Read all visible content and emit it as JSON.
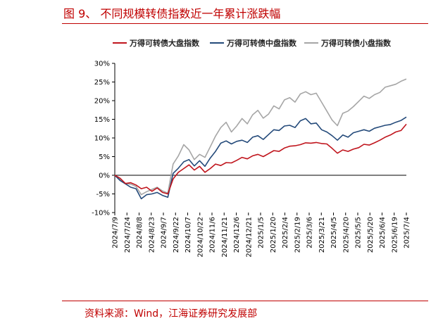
{
  "title": "图 9、 不同规模转债指数近一年累计涨跌幅",
  "source": "资料来源：Wind，江海证券研究发展部",
  "colors": {
    "large": "#c0151d",
    "mid": "#244a7a",
    "small": "#a6a6a6",
    "accent": "#c00000"
  },
  "chart_data": {
    "type": "line",
    "title": "",
    "xlabel": "",
    "ylabel": "",
    "ylim": [
      -10,
      30
    ],
    "yticks": [
      "30%",
      "25%",
      "20%",
      "15%",
      "10%",
      "5%",
      "0%",
      "-5%",
      "-10%"
    ],
    "xticks": [
      "2024/7/9",
      "2024/7/24",
      "2024/8/8",
      "2024/8/23",
      "2024/9/7",
      "2024/9/22",
      "2024/10/7",
      "2024/10/22",
      "2024/11/6",
      "2024/11/21",
      "2024/12/6",
      "2024/12/21",
      "2025/1/5",
      "2025/1/20",
      "2025/2/4",
      "2025/2/19",
      "2025/3/6",
      "2025/3/21",
      "2025/4/5",
      "2025/4/20",
      "2025/5/5",
      "2025/5/20",
      "2025/6/4",
      "2025/6/19",
      "2025/7/4"
    ],
    "legend_position": "top",
    "grid": false,
    "x": [
      "2024/7/9",
      "2024/7/16",
      "2024/7/24",
      "2024/8/1",
      "2024/8/8",
      "2024/8/16",
      "2024/8/23",
      "2024/9/1",
      "2024/9/7",
      "2024/9/15",
      "2024/9/22",
      "2024/9/24",
      "2024/9/27",
      "2024/9/30",
      "2024/10/8",
      "2024/10/11",
      "2024/10/15",
      "2024/10/22",
      "2024/10/29",
      "2024/11/6",
      "2024/11/10",
      "2024/11/14",
      "2024/11/21",
      "2024/11/28",
      "2024/12/6",
      "2024/12/12",
      "2024/12/21",
      "2024/12/28",
      "2025/1/5",
      "2025/1/12",
      "2025/1/20",
      "2025/1/27",
      "2025/2/4",
      "2025/2/11",
      "2025/2/19",
      "2025/2/26",
      "2025/3/6",
      "2025/3/14",
      "2025/3/21",
      "2025/3/28",
      "2025/4/3",
      "2025/4/7",
      "2025/4/10",
      "2025/4/20",
      "2025/4/27",
      "2025/5/5",
      "2025/5/12",
      "2025/5/20",
      "2025/5/27",
      "2025/6/4",
      "2025/6/11",
      "2025/6/19",
      "2025/6/26",
      "2025/7/1",
      "2025/7/4",
      "2025/7/7"
    ],
    "series": [
      {
        "name": "万得可转债大盘指数",
        "color": "#c0151d",
        "values": [
          0,
          -0.8,
          -2.2,
          -2.0,
          -2.6,
          -3.6,
          -3.2,
          -4.3,
          -3.4,
          -4.6,
          -5.0,
          -1.0,
          0.8,
          1.8,
          2.8,
          1.4,
          2.4,
          0.8,
          1.8,
          3.0,
          2.6,
          3.4,
          3.3,
          4.0,
          4.8,
          4.4,
          5.2,
          5.6,
          5.0,
          5.8,
          6.6,
          6.4,
          7.3,
          7.8,
          7.9,
          8.2,
          8.7,
          8.6,
          8.8,
          8.5,
          8.4,
          7.2,
          5.9,
          6.8,
          6.4,
          7.0,
          7.4,
          8.3,
          8.1,
          8.7,
          9.4,
          10.2,
          10.8,
          11.6,
          12.0,
          13.7
        ]
      },
      {
        "name": "万得可转债中盘指数",
        "color": "#244a7a",
        "values": [
          0,
          -1.4,
          -2.3,
          -3.2,
          -3.6,
          -6.3,
          -5.2,
          -5.0,
          -4.6,
          -5.4,
          -5.9,
          0.5,
          1.9,
          3.6,
          4.2,
          2.5,
          3.9,
          2.4,
          4.6,
          6.4,
          8.6,
          9.2,
          8.4,
          9.1,
          9.4,
          8.8,
          10.2,
          10.6,
          9.6,
          10.9,
          12.2,
          12.0,
          13.2,
          13.4,
          12.8,
          14.6,
          15.2,
          13.8,
          14.0,
          12.2,
          11.6,
          10.6,
          9.4,
          10.8,
          10.2,
          11.4,
          11.8,
          12.2,
          11.8,
          12.6,
          13.0,
          13.4,
          13.6,
          14.2,
          14.7,
          15.6
        ]
      },
      {
        "name": "万得可转债小盘指数",
        "color": "#a6a6a6",
        "values": [
          0,
          -1.2,
          -2.2,
          -2.4,
          -3.0,
          -5.2,
          -4.4,
          -3.8,
          -3.2,
          -4.2,
          -4.8,
          3.0,
          5.2,
          8.2,
          6.8,
          4.2,
          5.6,
          4.8,
          7.6,
          10.5,
          12.8,
          14.2,
          11.6,
          13.2,
          15.2,
          13.8,
          16.2,
          17.4,
          15.3,
          16.4,
          18.6,
          17.8,
          20.2,
          20.8,
          19.6,
          21.8,
          22.4,
          21.6,
          22.0,
          19.6,
          17.2,
          14.8,
          13.3,
          16.6,
          17.2,
          18.4,
          19.8,
          21.2,
          20.6,
          21.6,
          22.2,
          23.6,
          24.0,
          24.4,
          25.2,
          25.8
        ]
      }
    ]
  }
}
